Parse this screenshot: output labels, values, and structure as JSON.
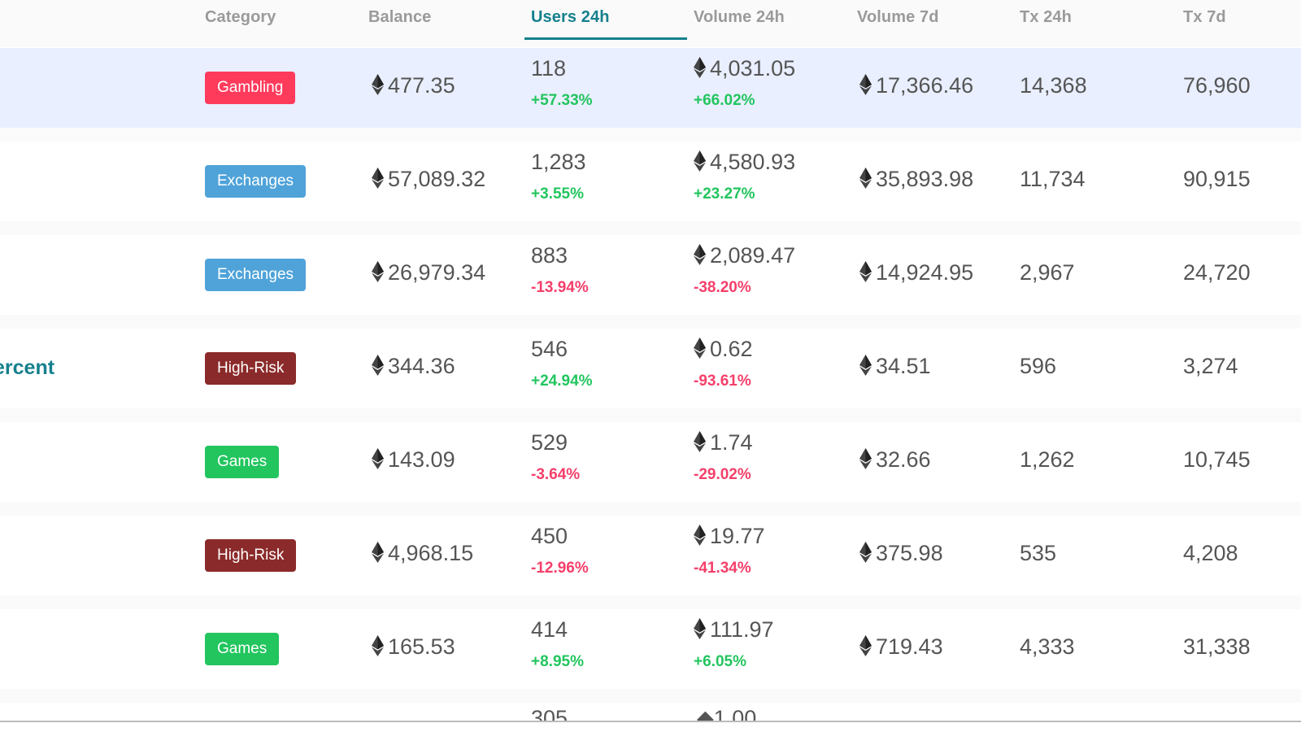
{
  "table": {
    "headers": {
      "category": "Category",
      "balance": "Balance",
      "users_24h": "Users 24h",
      "volume_24h": "Volume 24h",
      "volume_7d": "Volume 7d",
      "tx_24h": "Tx 24h",
      "tx_7d": "Tx 7d"
    },
    "sorted_column": "Users 24h",
    "rows": [
      {
        "name": "",
        "category": "Gambling",
        "category_color": "#ff3b5c",
        "balance": "477.35",
        "users": "118",
        "users_change": "+57.33%",
        "users_trend": "up",
        "volume_24h": "4,031.05",
        "volume_change": "+66.02%",
        "volume_trend": "up",
        "volume_7d": "17,366.46",
        "tx_24h": "14,368",
        "tx_7d": "76,960",
        "highlighted": true
      },
      {
        "name": "",
        "category": "Exchanges",
        "category_color": "#4fa3d9",
        "balance": "57,089.32",
        "users": "1,283",
        "users_change": "+3.55%",
        "users_trend": "up",
        "volume_24h": "4,580.93",
        "volume_change": "+23.27%",
        "volume_trend": "up",
        "volume_7d": "35,893.98",
        "tx_24h": "11,734",
        "tx_7d": "90,915",
        "highlighted": false
      },
      {
        "name": "",
        "category": "Exchanges",
        "category_color": "#4fa3d9",
        "balance": "26,979.34",
        "users": "883",
        "users_change": "-13.94%",
        "users_trend": "down",
        "volume_24h": "2,089.47",
        "volume_change": "-38.20%",
        "volume_trend": "down",
        "volume_7d": "14,924.95",
        "tx_24h": "2,967",
        "tx_7d": "24,720",
        "highlighted": false
      },
      {
        "name": "ercent",
        "category": "High-Risk",
        "category_color": "#8b2a2a",
        "balance": "344.36",
        "users": "546",
        "users_change": "+24.94%",
        "users_trend": "up",
        "volume_24h": "0.62",
        "volume_change": "-93.61%",
        "volume_trend": "down",
        "volume_7d": "34.51",
        "tx_24h": "596",
        "tx_7d": "3,274",
        "highlighted": false
      },
      {
        "name": "",
        "category": "Games",
        "category_color": "#22c55e",
        "balance": "143.09",
        "users": "529",
        "users_change": "-3.64%",
        "users_trend": "down",
        "volume_24h": "1.74",
        "volume_change": "-29.02%",
        "volume_trend": "down",
        "volume_7d": "32.66",
        "tx_24h": "1,262",
        "tx_7d": "10,745",
        "highlighted": false
      },
      {
        "name": "",
        "category": "High-Risk",
        "category_color": "#8b2a2a",
        "balance": "4,968.15",
        "users": "450",
        "users_change": "-12.96%",
        "users_trend": "down",
        "volume_24h": "19.77",
        "volume_change": "-41.34%",
        "volume_trend": "down",
        "volume_7d": "375.98",
        "tx_24h": "535",
        "tx_7d": "4,208",
        "highlighted": false
      },
      {
        "name": "",
        "category": "Games",
        "category_color": "#22c55e",
        "balance": "165.53",
        "users": "414",
        "users_change": "+8.95%",
        "users_trend": "up",
        "volume_24h": "111.97",
        "volume_change": "+6.05%",
        "volume_trend": "up",
        "volume_7d": "719.43",
        "tx_24h": "4,333",
        "tx_7d": "31,338",
        "highlighted": false
      }
    ]
  },
  "colors": {
    "accent": "#16808d",
    "positive": "#22c55e",
    "negative": "#f43f6a",
    "row_highlight": "#e9efff"
  },
  "icons": {
    "currency": "ethereum-icon"
  }
}
